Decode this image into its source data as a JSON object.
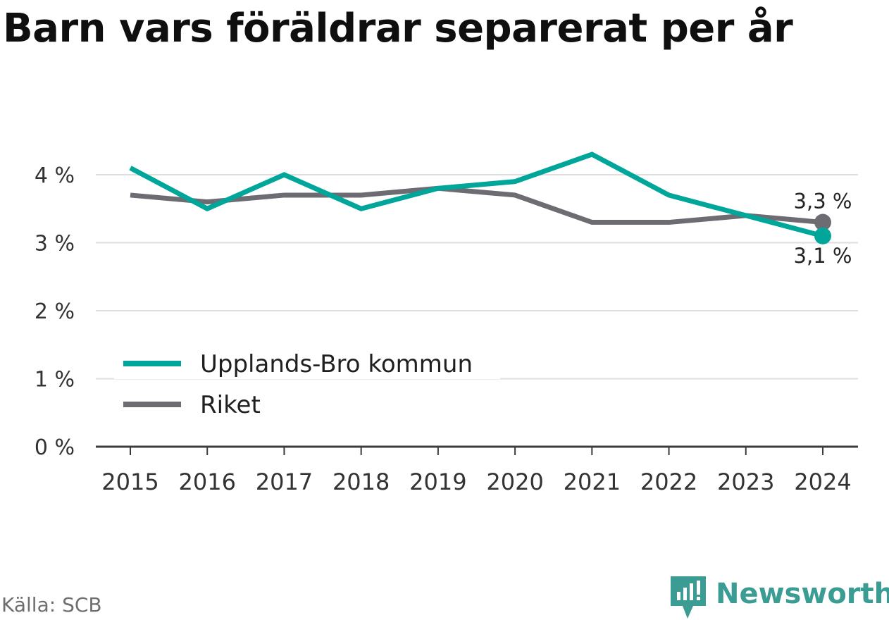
{
  "title": "Barn vars föräldrar separerat per år",
  "source": "Källa: SCB",
  "brand": {
    "name": "Newsworthy",
    "color": "#3a9c93"
  },
  "colors": {
    "grid": "#dedede",
    "axis": "#3c3c3c",
    "text": "#333333"
  },
  "chart_data": {
    "type": "line",
    "title": "Barn vars föräldrar separerat per år",
    "xlabel": "",
    "ylabel": "",
    "categories": [
      "2015",
      "2016",
      "2017",
      "2018",
      "2019",
      "2020",
      "2021",
      "2022",
      "2023",
      "2024"
    ],
    "ylim": [
      0,
      4
    ],
    "yticks": [
      0,
      1,
      2,
      3,
      4
    ],
    "ytick_labels": [
      "0 %",
      "1 %",
      "2 %",
      "3 %",
      "4 %"
    ],
    "grid": true,
    "legend_position": "bottom-left",
    "series": [
      {
        "name": "Upplands-Bro kommun",
        "color": "#00a69a",
        "values": [
          4.1,
          3.5,
          4.0,
          3.5,
          3.8,
          3.9,
          4.3,
          3.7,
          3.4,
          3.1
        ],
        "end_label": "3,1 %"
      },
      {
        "name": "Riket",
        "color": "#6e6c73",
        "values": [
          3.7,
          3.6,
          3.7,
          3.7,
          3.8,
          3.7,
          3.3,
          3.3,
          3.4,
          3.3
        ],
        "end_label": "3,3 %"
      }
    ]
  }
}
